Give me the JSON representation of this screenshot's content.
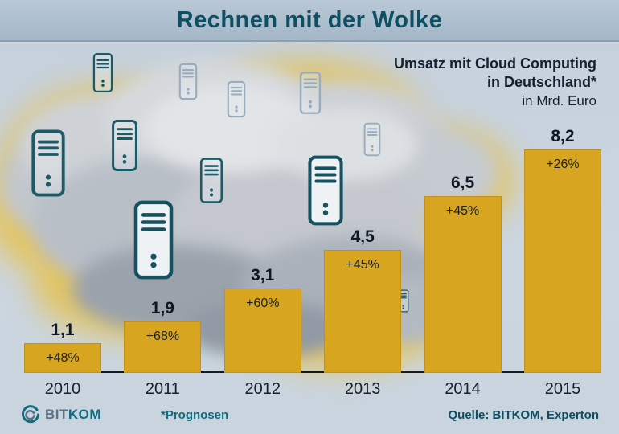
{
  "title": "Rechnen mit der Wolke",
  "subtitle": {
    "line1": "Umsatz mit Cloud Computing",
    "line2": "in Deutschland*",
    "line3": "in Mrd. Euro"
  },
  "chart_data": {
    "type": "bar",
    "title": "Umsatz mit Cloud Computing in Deutschland",
    "unit": "in Mrd. Euro",
    "categories": [
      "2010",
      "2011",
      "2012",
      "2013",
      "2014",
      "2015"
    ],
    "values": [
      1.1,
      1.9,
      3.1,
      4.5,
      6.5,
      8.2
    ],
    "value_labels": [
      "1,1",
      "1,9",
      "3,1",
      "4,5",
      "6,5",
      "8,2"
    ],
    "growth_labels": [
      "+48%",
      "+68%",
      "+60%",
      "+45%",
      "+45%",
      "+26%"
    ],
    "bar_color": "#d7a51f",
    "ylim": [
      0,
      8.2
    ],
    "xlabel": "",
    "ylabel": "Umsatz in Mrd. Euro",
    "note": "*Prognosen"
  },
  "footer": {
    "logo_text_1": "BIT",
    "logo_text_2": "KOM",
    "footnote": "*Prognosen",
    "source": "Quelle: BITKOM, Experton"
  },
  "colors": {
    "accent_gold": "#d7a51f",
    "title_teal": "#0d4f63",
    "logo_teal": "#0e6d7f"
  }
}
